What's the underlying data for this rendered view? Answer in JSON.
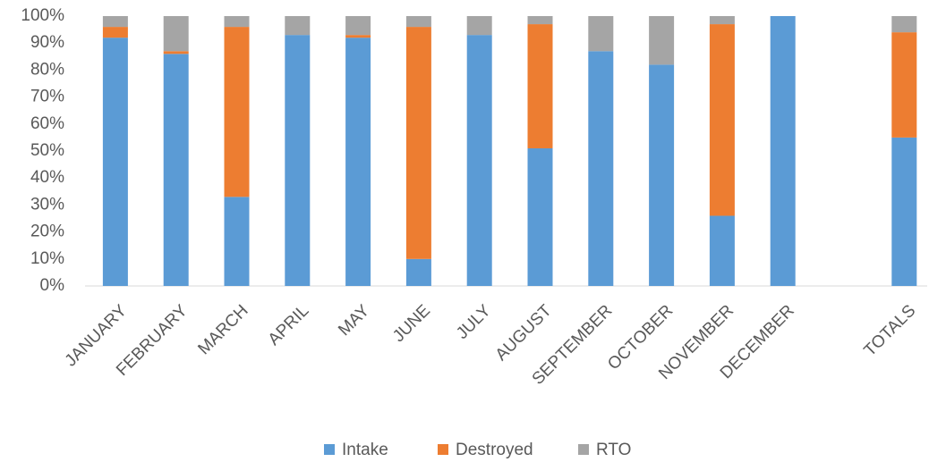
{
  "chart_data": {
    "type": "stacked_bar",
    "categories": [
      "JANUARY",
      "FEBRUARY",
      "MARCH",
      "APRIL",
      "MAY",
      "JUNE",
      "JULY",
      "AUGUST",
      "SEPTEMBER",
      "OCTOBER",
      "NOVEMBER",
      "DECEMBER",
      null,
      "TOTALS"
    ],
    "series": [
      {
        "name": "Intake",
        "color": "#5b9bd5",
        "values": [
          92,
          86,
          33,
          93,
          92,
          10,
          93,
          51,
          87,
          82,
          26,
          100,
          null,
          55
        ]
      },
      {
        "name": "Destroyed",
        "color": "#ed7d31",
        "values": [
          4,
          1,
          63,
          0,
          1,
          86,
          0,
          46,
          0,
          0,
          71,
          0,
          null,
          39
        ]
      },
      {
        "name": "RTO",
        "color": "#a5a5a5",
        "values": [
          4,
          13,
          4,
          7,
          7,
          4,
          7,
          3,
          13,
          18,
          3,
          0,
          null,
          6
        ]
      }
    ],
    "ylim": [
      0,
      100
    ],
    "yticks": [
      {
        "value": 0,
        "label": "0%"
      },
      {
        "value": 10,
        "label": "10%"
      },
      {
        "value": 20,
        "label": "20%"
      },
      {
        "value": 30,
        "label": "30%"
      },
      {
        "value": 40,
        "label": "40%"
      },
      {
        "value": 50,
        "label": "50%"
      },
      {
        "value": 60,
        "label": "60%"
      },
      {
        "value": 70,
        "label": "70%"
      },
      {
        "value": 80,
        "label": "80%"
      },
      {
        "value": 90,
        "label": "90%"
      },
      {
        "value": 100,
        "label": "100%"
      }
    ],
    "grid": false,
    "legend": "bottom"
  }
}
